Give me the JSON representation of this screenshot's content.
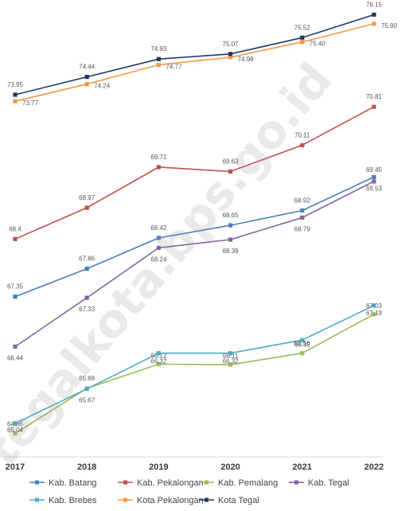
{
  "chart_data": {
    "type": "line",
    "title": "",
    "xlabel": "",
    "ylabel": "",
    "grid": false,
    "legend_position": "bottom",
    "categories": [
      "2017",
      "2018",
      "2019",
      "2020",
      "2021",
      "2022"
    ],
    "series": [
      {
        "name": "Kab. Batang",
        "color": "#4a7ebb",
        "values": [
          67.35,
          67.86,
          68.42,
          68.65,
          68.92,
          69.53
        ],
        "labels": [
          "67.35",
          "67.86",
          "68.42",
          "68.65",
          "68.92",
          "69.53"
        ]
      },
      {
        "name": "Kab. Pekalongan",
        "color": "#c0504d",
        "values": [
          68.4,
          68.97,
          69.71,
          69.63,
          70.11,
          70.81
        ],
        "labels": [
          "68.4",
          "68.97",
          "69.71",
          "69.63",
          "70.11",
          "70.81"
        ]
      },
      {
        "name": "Kab. Pemalang",
        "color": "#9bbb59",
        "values": [
          64.86,
          65.68,
          66.12,
          66.11,
          66.32,
          67.03
        ],
        "labels": [
          "64.86",
          "65.68",
          "66.12",
          "66.11",
          "66.32",
          "67.03"
        ]
      },
      {
        "name": "Kab. Tegal",
        "color": "#8064a2",
        "values": [
          66.44,
          67.33,
          68.24,
          68.39,
          68.79,
          69.45
        ],
        "labels": [
          "66.44",
          "67.33",
          "68.24",
          "68.39",
          "68.79",
          "69.45"
        ]
      },
      {
        "name": "Kab. Brebes",
        "color": "#4bacc6",
        "values": [
          65.04,
          65.67,
          66.32,
          66.32,
          66.56,
          67.19
        ],
        "labels": [
          "65.04",
          "65.67",
          "66.32",
          "66.32",
          "66.56",
          "67.19"
        ]
      },
      {
        "name": "Kota Pekalongan",
        "color": "#f79646",
        "values": [
          73.77,
          74.24,
          74.77,
          74.98,
          75.4,
          75.9
        ],
        "labels": [
          "73.77",
          "74.24",
          "74.77",
          "74.98",
          "75.40",
          "75.90"
        ]
      },
      {
        "name": "Kota Tegal",
        "color": "#1f3864",
        "values": [
          73.95,
          74.44,
          74.93,
          75.07,
          75.52,
          76.15
        ],
        "labels": [
          "73.95",
          "74.44",
          "74.93",
          "75.07",
          "75.52",
          "76.15"
        ]
      }
    ]
  },
  "watermark": "tegalkota.bps.go.id"
}
